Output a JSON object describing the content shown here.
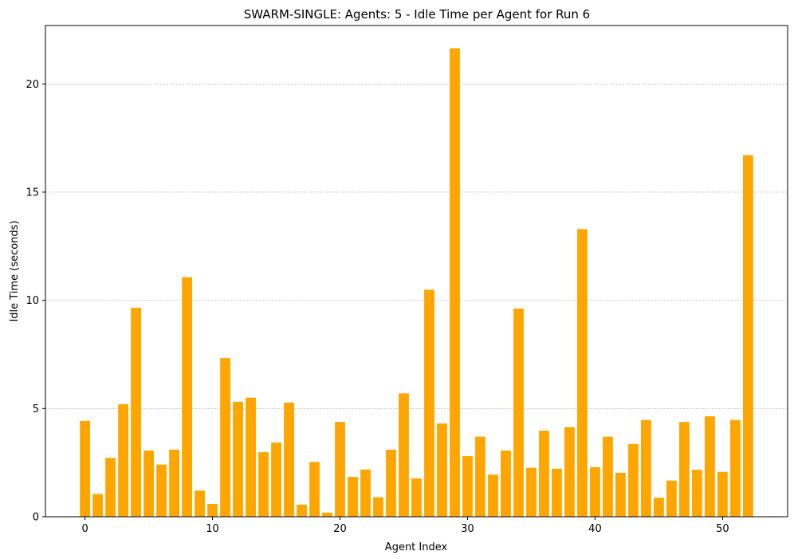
{
  "chart_data": {
    "type": "bar",
    "title": "SWARM-SINGLE: Agents: 5 - Idle Time per Agent for Run 6",
    "xlabel": "Agent Index",
    "ylabel": "Idle Time (seconds)",
    "xlim": [
      -3.1,
      55.1
    ],
    "ylim": [
      0,
      22.7
    ],
    "x_ticks": [
      0,
      10,
      20,
      30,
      40,
      50
    ],
    "y_ticks": [
      0,
      5,
      10,
      15,
      20
    ],
    "grid": "y-dashed",
    "bar_color": "#FFA500",
    "x": [
      0,
      1,
      2,
      3,
      4,
      5,
      6,
      7,
      8,
      9,
      10,
      11,
      12,
      13,
      14,
      15,
      16,
      17,
      18,
      19,
      20,
      21,
      22,
      23,
      24,
      25,
      26,
      27,
      28,
      29,
      30,
      31,
      32,
      33,
      34,
      35,
      36,
      37,
      38,
      39,
      40,
      41,
      42,
      43,
      44,
      45,
      46,
      47,
      48,
      49,
      50,
      51,
      52
    ],
    "values": [
      4.43,
      1.05,
      2.72,
      5.2,
      9.66,
      3.06,
      2.41,
      3.1,
      11.07,
      1.21,
      0.59,
      7.33,
      5.31,
      5.5,
      2.98,
      3.43,
      5.28,
      0.56,
      2.53,
      0.19,
      4.38,
      1.84,
      2.18,
      0.9,
      3.1,
      5.7,
      1.77,
      10.49,
      4.31,
      21.65,
      2.8,
      3.7,
      1.95,
      3.06,
      9.62,
      2.26,
      3.98,
      2.22,
      4.14,
      13.29,
      2.29,
      3.7,
      2.03,
      3.36,
      4.47,
      0.88,
      1.67,
      4.38,
      2.17,
      4.64,
      2.07,
      4.47,
      16.71
    ]
  }
}
